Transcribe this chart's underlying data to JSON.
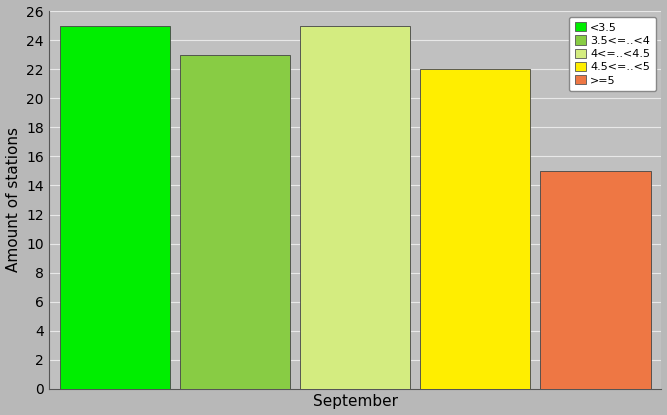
{
  "bars": [
    {
      "label": "<3.5",
      "value": 25,
      "color": "#00ee00"
    },
    {
      "label": "3.5<=..<4",
      "value": 23,
      "color": "#88cc44"
    },
    {
      "label": "4<=..<4.5",
      "value": 25,
      "color": "#d4ec80"
    },
    {
      "label": "4.5<=..<5",
      "value": 22,
      "color": "#ffee00"
    },
    {
      "label": ">=5",
      "value": 15,
      "color": "#ee7744"
    }
  ],
  "ylabel": "Amount of stations",
  "xlabel": "September",
  "ylim": [
    0,
    26
  ],
  "yticks": [
    0,
    2,
    4,
    6,
    8,
    10,
    12,
    14,
    16,
    18,
    20,
    22,
    24,
    26
  ],
  "background_color": "#b8b8b8",
  "plot_bg_color": "#c0c0c0",
  "grid_color": "#e8e8e8",
  "legend_fontsize": 8,
  "ylabel_fontsize": 11,
  "xlabel_fontsize": 11,
  "tick_fontsize": 10
}
